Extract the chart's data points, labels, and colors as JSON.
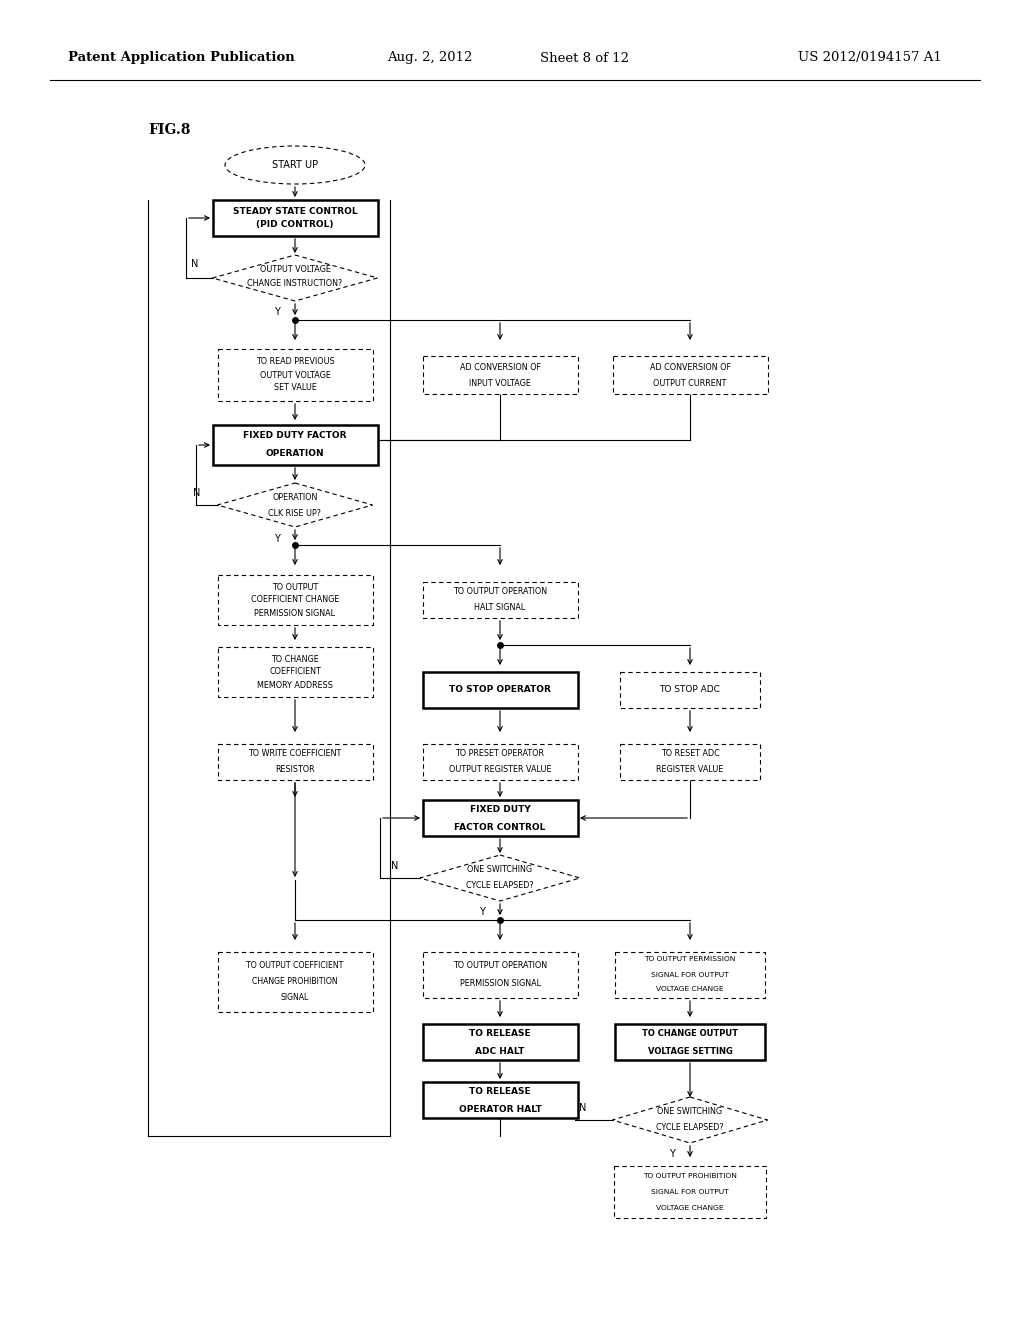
{
  "title": "Patent Application Publication",
  "date": "Aug. 2, 2012",
  "sheet": "Sheet 8 of 12",
  "patent_num": "US 2012/0194157 A1",
  "fig_label": "FIG.8",
  "bg": "#ffffff"
}
